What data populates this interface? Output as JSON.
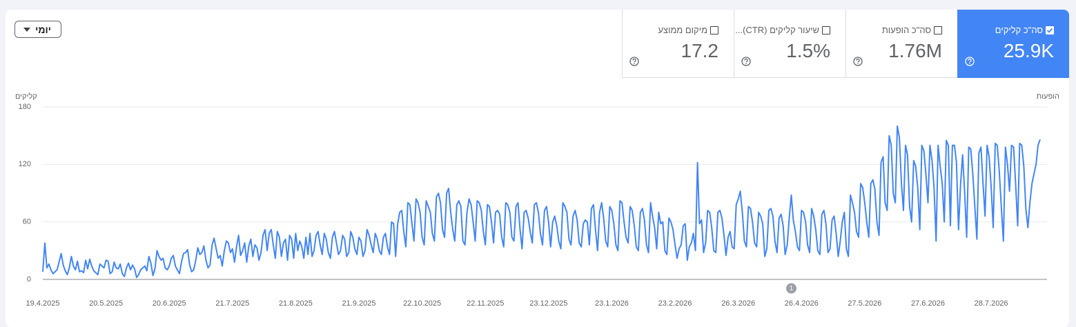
{
  "filter": {
    "label": "יומי"
  },
  "metrics": [
    {
      "label": "סה\"כ קליקים",
      "value": "25.9K",
      "checked": true
    },
    {
      "label": "סה\"כ הופעות",
      "value": "1.76M",
      "checked": false
    },
    {
      "label": "שיעור קליקים (CTR)...",
      "value": "1.5%",
      "checked": false
    },
    {
      "label": "מיקום ממוצע",
      "value": "17.2",
      "checked": false
    }
  ],
  "chart_data": {
    "type": "line",
    "ylabel": "קליקים",
    "ylabel_right": "הופעות",
    "ylim": [
      0,
      180
    ],
    "yticks": [
      0,
      60,
      120,
      180
    ],
    "grid": true,
    "color": "#4285f4",
    "annotations": [
      {
        "text": "1"
      }
    ],
    "categories": [
      "19.4.2025",
      null,
      null,
      null,
      null,
      null,
      null,
      null,
      null,
      null,
      null,
      null,
      null,
      null,
      null,
      null,
      null,
      null,
      null,
      null,
      null,
      null,
      null,
      null,
      null,
      null,
      null,
      null,
      null,
      null,
      null,
      "20.5.2025",
      null,
      null,
      null,
      null,
      null,
      null,
      null,
      null,
      null,
      null,
      null,
      null,
      null,
      null,
      null,
      null,
      null,
      null,
      null,
      null,
      null,
      null,
      null,
      null,
      null,
      null,
      null,
      null,
      null,
      null,
      "20.6.2025",
      null,
      null,
      null,
      null,
      null,
      null,
      null,
      null,
      null,
      null,
      null,
      null,
      null,
      null,
      null,
      null,
      null,
      null,
      null,
      null,
      null,
      null,
      null,
      null,
      null,
      null,
      null,
      null,
      null,
      null,
      "21.7.2025",
      null,
      null,
      null,
      null,
      null,
      null,
      null,
      null,
      null,
      null,
      null,
      null,
      null,
      null,
      null,
      null,
      null,
      null,
      null,
      null,
      null,
      null,
      null,
      null,
      null,
      null,
      null,
      null,
      null,
      null,
      "21.8.2025",
      null,
      null,
      null,
      null,
      null,
      null,
      null,
      null,
      null,
      null,
      null,
      null,
      null,
      null,
      null,
      null,
      null,
      null,
      null,
      null,
      null,
      null,
      null,
      null,
      null,
      null,
      null,
      null,
      null,
      null,
      "21.9.2025",
      null,
      null,
      null,
      null,
      null,
      null,
      null,
      null,
      null,
      null,
      null,
      null,
      null,
      null,
      null,
      null,
      null,
      null,
      null,
      null,
      null,
      null,
      null,
      null,
      null,
      null,
      null,
      null,
      null,
      null,
      "22.10.2025",
      null,
      null,
      null,
      null,
      null,
      null,
      null,
      null,
      null,
      null,
      null,
      null,
      null,
      null,
      null,
      null,
      null,
      null,
      null,
      null,
      null,
      null,
      null,
      null,
      null,
      null,
      null,
      null,
      null,
      null,
      "22.11.2025",
      null,
      null,
      null,
      null,
      null,
      null,
      null,
      null,
      null,
      null,
      null,
      null,
      null,
      null,
      null,
      null,
      null,
      null,
      null,
      null,
      null,
      null,
      null,
      null,
      null,
      null,
      null,
      null,
      null,
      null,
      "23.12.2025",
      null,
      null,
      null,
      null,
      null,
      null,
      null,
      null,
      null,
      null,
      null,
      null,
      null,
      null,
      null,
      null,
      null,
      null,
      null,
      null,
      null,
      null,
      null,
      null,
      null,
      null,
      null,
      null,
      null,
      null,
      "23.1.2026",
      null,
      null,
      null,
      null,
      null,
      null,
      null,
      null,
      null,
      null,
      null,
      null,
      null,
      null,
      null,
      null,
      null,
      null,
      null,
      null,
      null,
      null,
      null,
      null,
      null,
      null,
      null,
      null,
      null,
      null,
      "23.2.2026",
      null,
      null,
      null,
      null,
      null,
      null,
      null,
      null,
      null,
      null,
      null,
      null,
      null,
      null,
      null,
      null,
      null,
      null,
      null,
      null,
      null,
      null,
      null,
      null,
      null,
      null,
      null,
      null,
      null,
      null,
      "26.3.2026",
      null,
      null,
      null,
      null,
      null,
      null,
      null,
      null,
      null,
      null,
      null,
      null,
      null,
      null,
      null,
      null,
      null,
      null,
      null,
      null,
      null,
      null,
      null,
      null,
      null,
      null,
      null,
      null,
      null,
      null,
      "26.4.2026",
      null,
      null,
      null,
      null,
      null,
      null,
      null,
      null,
      null,
      null,
      null,
      null,
      null,
      null,
      null,
      null,
      null,
      null,
      null,
      null,
      null,
      null,
      null,
      null,
      null,
      null,
      null,
      null,
      null,
      null,
      "27.5.2026",
      null,
      null,
      null,
      null,
      null,
      null,
      null,
      null,
      null,
      null,
      null,
      null,
      null,
      null,
      null,
      null,
      null,
      null,
      null,
      null,
      null,
      null,
      null,
      null,
      null,
      null,
      null,
      null,
      null,
      null,
      "27.6.2026",
      null,
      null,
      null,
      null,
      null,
      null,
      null,
      null,
      null,
      null,
      null,
      null,
      null,
      null,
      null,
      null,
      null,
      null,
      null,
      null,
      null,
      null,
      null,
      null,
      null,
      null,
      null,
      null,
      null,
      null,
      "28.7.2026",
      null,
      null,
      null,
      null,
      null,
      null,
      null,
      null,
      null,
      null,
      null,
      null,
      null,
      null,
      null,
      null,
      null,
      null,
      null,
      null,
      null,
      null,
      null,
      null
    ],
    "values": [
      8,
      38,
      12,
      16,
      10,
      6,
      8,
      10,
      18,
      27,
      15,
      9,
      5,
      12,
      24,
      14,
      10,
      19,
      8,
      9,
      7,
      20,
      11,
      21,
      14,
      9,
      7,
      5,
      16,
      14,
      12,
      20,
      19,
      6,
      8,
      18,
      12,
      11,
      16,
      6,
      3,
      12,
      17,
      10,
      15,
      11,
      2,
      5,
      10,
      12,
      14,
      9,
      24,
      17,
      4,
      11,
      30,
      24,
      20,
      22,
      12,
      10,
      14,
      22,
      25,
      14,
      10,
      6,
      18,
      27,
      28,
      31,
      15,
      8,
      10,
      20,
      33,
      26,
      28,
      35,
      20,
      12,
      15,
      36,
      43,
      32,
      22,
      25,
      14,
      30,
      40,
      38,
      28,
      32,
      18,
      34,
      46,
      25,
      30,
      38,
      18,
      35,
      42,
      24,
      36,
      33,
      20,
      28,
      46,
      52,
      30,
      48,
      52,
      36,
      22,
      50,
      44,
      24,
      38,
      42,
      20,
      46,
      42,
      22,
      48,
      30,
      40,
      34,
      22,
      44,
      26,
      48,
      24,
      30,
      46,
      50,
      36,
      26,
      48,
      42,
      28,
      22,
      44,
      50,
      38,
      26,
      30,
      46,
      42,
      24,
      28,
      50,
      44,
      32,
      26,
      44,
      40,
      24,
      30,
      52,
      46,
      36,
      28,
      48,
      42,
      30,
      26,
      44,
      48,
      34,
      26,
      60,
      58,
      24,
      58,
      70,
      72,
      50,
      34,
      80,
      78,
      58,
      40,
      84,
      80,
      70,
      44,
      36,
      82,
      76,
      70,
      48,
      40,
      86,
      90,
      80,
      52,
      44,
      90,
      95,
      70,
      52,
      40,
      78,
      82,
      76,
      40,
      36,
      70,
      84,
      78,
      60,
      40,
      82,
      80,
      72,
      50,
      36,
      78,
      76,
      60,
      38,
      70,
      72,
      68,
      44,
      34,
      80,
      78,
      70,
      44,
      40,
      76,
      80,
      52,
      32,
      70,
      72,
      64,
      50,
      38,
      78,
      80,
      70,
      48,
      36,
      72,
      76,
      60,
      34,
      60,
      66,
      56,
      40,
      32,
      80,
      76,
      70,
      42,
      36,
      66,
      72,
      62,
      38,
      34,
      58,
      62,
      60,
      36,
      74,
      78,
      52,
      30,
      70,
      80,
      64,
      40,
      34,
      76,
      72,
      58,
      36,
      30,
      82,
      80,
      60,
      44,
      38,
      76,
      72,
      56,
      34,
      30,
      70,
      74,
      62,
      36,
      28,
      80,
      66,
      54,
      32,
      70,
      58,
      60,
      30,
      26,
      64,
      60,
      52,
      36,
      22,
      32,
      36,
      56,
      58,
      20,
      34,
      38,
      48,
      30,
      122,
      58,
      62,
      28,
      38,
      72,
      70,
      54,
      30,
      28,
      70,
      72,
      64,
      46,
      25,
      44,
      50,
      34,
      32,
      78,
      84,
      92,
      70,
      40,
      34,
      76,
      74,
      60,
      38,
      34,
      70,
      66,
      58,
      24,
      32,
      72,
      74,
      66,
      40,
      28,
      64,
      68,
      56,
      26,
      36,
      64,
      88,
      62,
      50,
      34,
      30,
      72,
      70,
      60,
      36,
      28,
      74,
      66,
      52,
      30,
      26,
      68,
      72,
      58,
      28,
      32,
      62,
      66,
      48,
      24,
      40,
      60,
      70,
      32,
      24,
      88,
      80,
      70,
      50,
      44,
      100,
      96,
      80,
      60,
      44,
      100,
      104,
      94,
      60,
      46,
      122,
      128,
      80,
      72,
      150,
      140,
      90,
      80,
      160,
      148,
      100,
      72,
      140,
      130,
      76,
      60,
      124,
      118,
      96,
      52,
      140,
      134,
      110,
      80,
      140,
      124,
      96,
      40,
      140,
      118,
      100,
      60,
      145,
      140,
      56,
      140,
      140,
      122,
      52,
      100,
      130,
      90,
      44,
      138,
      136,
      110,
      76,
      42,
      132,
      138,
      100,
      66,
      140,
      128,
      96,
      54,
      142,
      140,
      112,
      74,
      40,
      138,
      120,
      92,
      140,
      138,
      100,
      56,
      142,
      140,
      118,
      74,
      54,
      80,
      100,
      110,
      120,
      140,
      146
    ]
  }
}
